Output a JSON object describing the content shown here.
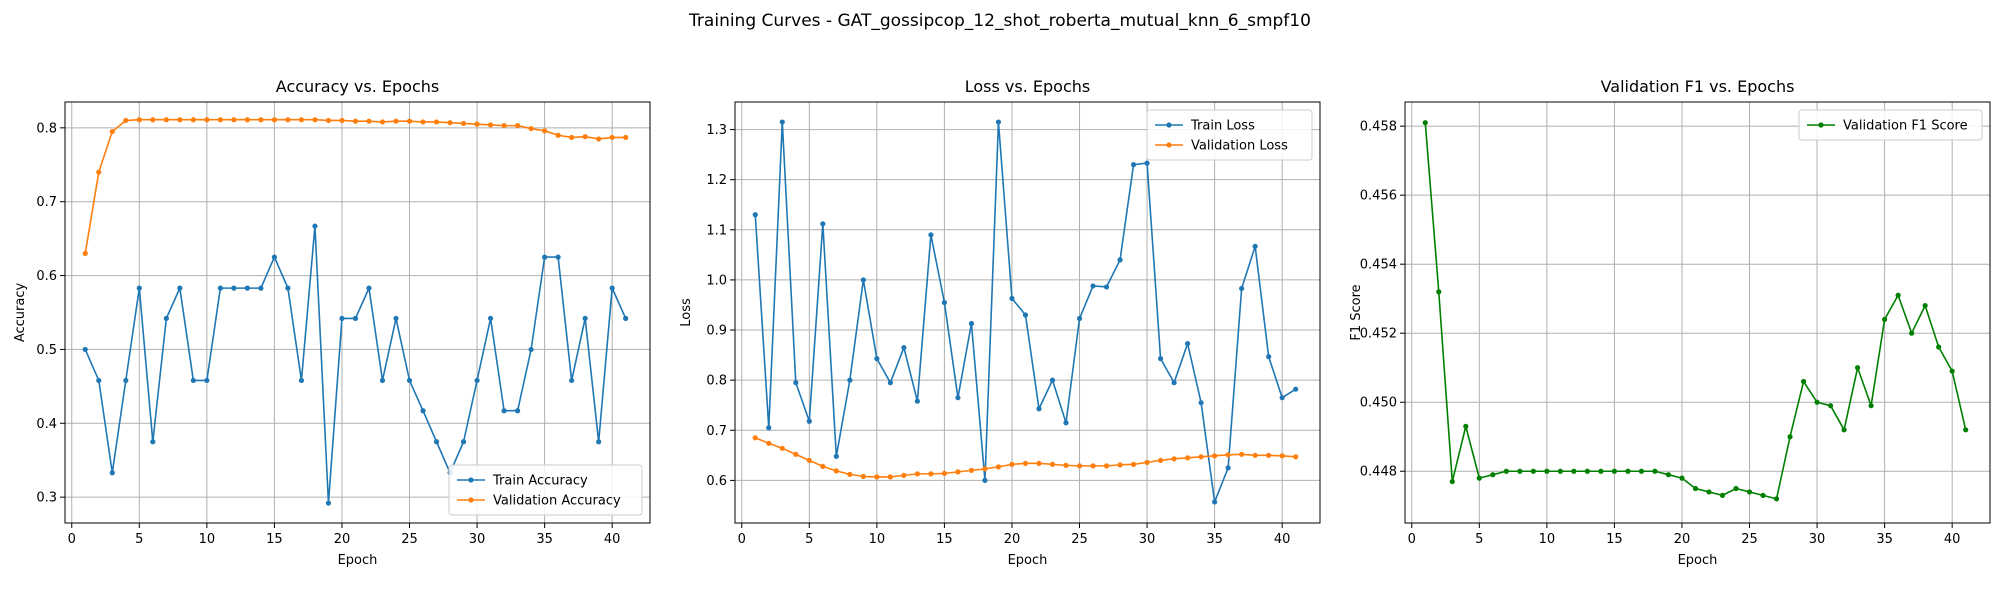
{
  "figure": {
    "suptitle": "Training Curves - GAT_gossipcop_12_shot_roberta_mutual_knn_6_smpf10"
  },
  "chart_data": [
    {
      "type": "line",
      "title": "Accuracy vs. Epochs",
      "xlabel": "Epoch",
      "ylabel": "Accuracy",
      "xlim": [
        -0.5,
        42.8
      ],
      "ylim": [
        0.265,
        0.835
      ],
      "xticks": [
        0,
        5,
        10,
        15,
        20,
        25,
        30,
        35,
        40
      ],
      "yticks": [
        0.3,
        0.4,
        0.5,
        0.6,
        0.7,
        0.8
      ],
      "ytick_labels": [
        "0.3",
        "0.4",
        "0.5",
        "0.6",
        "0.7",
        "0.8"
      ],
      "grid": true,
      "legend_position": "lower-right",
      "x": [
        1,
        2,
        3,
        4,
        5,
        6,
        7,
        8,
        9,
        10,
        11,
        12,
        13,
        14,
        15,
        16,
        17,
        18,
        19,
        20,
        21,
        22,
        23,
        24,
        25,
        26,
        27,
        28,
        29,
        30,
        31,
        32,
        33,
        34,
        35,
        36,
        37,
        38,
        39,
        40,
        41
      ],
      "series": [
        {
          "name": "Train Accuracy",
          "color": "#1f77b4",
          "values": [
            0.5,
            0.458,
            0.333,
            0.458,
            0.583,
            0.375,
            0.542,
            0.583,
            0.458,
            0.458,
            0.583,
            0.583,
            0.583,
            0.583,
            0.625,
            0.583,
            0.458,
            0.667,
            0.292,
            0.542,
            0.542,
            0.583,
            0.458,
            0.542,
            0.458,
            0.417,
            0.375,
            0.333,
            0.375,
            0.458,
            0.542,
            0.417,
            0.417,
            0.5,
            0.625,
            0.625,
            0.458,
            0.542,
            0.375,
            0.583,
            0.542
          ]
        },
        {
          "name": "Validation Accuracy",
          "color": "#ff7f0e",
          "values": [
            0.63,
            0.74,
            0.795,
            0.81,
            0.811,
            0.811,
            0.811,
            0.811,
            0.811,
            0.811,
            0.811,
            0.811,
            0.811,
            0.811,
            0.811,
            0.811,
            0.811,
            0.811,
            0.81,
            0.81,
            0.809,
            0.809,
            0.808,
            0.809,
            0.809,
            0.808,
            0.808,
            0.807,
            0.806,
            0.805,
            0.804,
            0.803,
            0.803,
            0.799,
            0.796,
            0.79,
            0.787,
            0.788,
            0.785,
            0.787,
            0.787
          ]
        }
      ]
    },
    {
      "type": "line",
      "title": "Loss vs. Epochs",
      "xlabel": "Epoch",
      "ylabel": "Loss",
      "xlim": [
        -0.5,
        42.8
      ],
      "ylim": [
        0.515,
        1.355
      ],
      "xticks": [
        0,
        5,
        10,
        15,
        20,
        25,
        30,
        35,
        40
      ],
      "yticks": [
        0.6,
        0.7,
        0.8,
        0.9,
        1.0,
        1.1,
        1.2,
        1.3
      ],
      "ytick_labels": [
        "0.6",
        "0.7",
        "0.8",
        "0.9",
        "1.0",
        "1.1",
        "1.2",
        "1.3"
      ],
      "grid": true,
      "legend_position": "upper-right",
      "x": [
        1,
        2,
        3,
        4,
        5,
        6,
        7,
        8,
        9,
        10,
        11,
        12,
        13,
        14,
        15,
        16,
        17,
        18,
        19,
        20,
        21,
        22,
        23,
        24,
        25,
        26,
        27,
        28,
        29,
        30,
        31,
        32,
        33,
        34,
        35,
        36,
        37,
        38,
        39,
        40,
        41
      ],
      "series": [
        {
          "name": "Train Loss",
          "color": "#1f77b4",
          "values": [
            1.13,
            0.705,
            1.315,
            0.795,
            0.718,
            1.112,
            0.648,
            0.8,
            1.0,
            0.843,
            0.795,
            0.865,
            0.758,
            1.09,
            0.955,
            0.765,
            0.913,
            0.6,
            1.315,
            0.963,
            0.93,
            0.743,
            0.8,
            0.715,
            0.923,
            0.988,
            0.986,
            1.04,
            1.23,
            1.233,
            0.843,
            0.795,
            0.873,
            0.755,
            0.557,
            0.625,
            0.983,
            1.067,
            0.847,
            0.765,
            0.782
          ]
        },
        {
          "name": "Validation Loss",
          "color": "#ff7f0e",
          "values": [
            0.685,
            0.674,
            0.664,
            0.652,
            0.64,
            0.628,
            0.619,
            0.612,
            0.608,
            0.607,
            0.607,
            0.61,
            0.613,
            0.613,
            0.614,
            0.617,
            0.62,
            0.623,
            0.627,
            0.632,
            0.634,
            0.634,
            0.632,
            0.63,
            0.629,
            0.629,
            0.629,
            0.631,
            0.632,
            0.636,
            0.64,
            0.643,
            0.645,
            0.647,
            0.649,
            0.651,
            0.652,
            0.65,
            0.65,
            0.649,
            0.647
          ]
        }
      ]
    },
    {
      "type": "line",
      "title": "Validation F1 vs. Epochs",
      "xlabel": "Epoch",
      "ylabel": "F1 Score",
      "xlim": [
        -0.5,
        42.8
      ],
      "ylim": [
        0.4465,
        0.4587
      ],
      "xticks": [
        0,
        5,
        10,
        15,
        20,
        25,
        30,
        35,
        40
      ],
      "yticks": [
        0.448,
        0.45,
        0.452,
        0.454,
        0.456,
        0.458
      ],
      "ytick_labels": [
        "0.448",
        "0.450",
        "0.452",
        "0.454",
        "0.456",
        "0.458"
      ],
      "grid": true,
      "legend_position": "upper-right",
      "x": [
        1,
        2,
        3,
        4,
        5,
        6,
        7,
        8,
        9,
        10,
        11,
        12,
        13,
        14,
        15,
        16,
        17,
        18,
        19,
        20,
        21,
        22,
        23,
        24,
        25,
        26,
        27,
        28,
        29,
        30,
        31,
        32,
        33,
        34,
        35,
        36,
        37,
        38,
        39,
        40,
        41
      ],
      "series": [
        {
          "name": "Validation F1 Score",
          "color": "#008000",
          "values": [
            0.4581,
            0.4532,
            0.4477,
            0.4493,
            0.4478,
            0.4479,
            0.448,
            0.448,
            0.448,
            0.448,
            0.448,
            0.448,
            0.448,
            0.448,
            0.448,
            0.448,
            0.448,
            0.448,
            0.4479,
            0.4478,
            0.4475,
            0.4474,
            0.4473,
            0.4475,
            0.4474,
            0.4473,
            0.4472,
            0.449,
            0.4506,
            0.45,
            0.4499,
            0.4492,
            0.451,
            0.4499,
            0.4524,
            0.4531,
            0.452,
            0.4528,
            0.4516,
            0.4509,
            0.4492
          ]
        }
      ]
    }
  ]
}
